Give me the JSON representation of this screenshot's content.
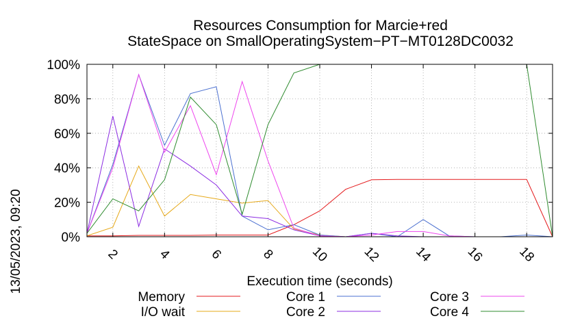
{
  "chart_data": {
    "type": "line",
    "title_lines": [
      "Resources Consumption for Marcie+red",
      "StateSpace on SmallOperatingSystem−PT−MT0128DC0032"
    ],
    "xlabel": "Execution time (seconds)",
    "ylabel": "",
    "side_label": "13/05/2023, 09:20",
    "xlim": [
      1,
      19
    ],
    "ylim": [
      0,
      100
    ],
    "x_ticks": [
      2,
      4,
      6,
      8,
      10,
      12,
      14,
      16,
      18
    ],
    "x_tick_labels": [
      "2",
      "4",
      "6",
      "8",
      "10",
      "12",
      "14",
      "16",
      "18"
    ],
    "y_ticks": [
      0,
      20,
      40,
      60,
      80,
      100
    ],
    "y_tick_labels": [
      "0%",
      "20%",
      "40%",
      "60%",
      "80%",
      "100%"
    ],
    "grid": true,
    "legend_position": "bottom",
    "series": [
      {
        "name": "Memory",
        "color": "#e41a1c",
        "points": [
          [
            1,
            0.5
          ],
          [
            2,
            0.5
          ],
          [
            3,
            0.8
          ],
          [
            4,
            0.8
          ],
          [
            5,
            0.8
          ],
          [
            6,
            1
          ],
          [
            7,
            1
          ],
          [
            8,
            1
          ],
          [
            9,
            7
          ],
          [
            10,
            15
          ],
          [
            11,
            27.5
          ],
          [
            12,
            33
          ],
          [
            13,
            33.2
          ],
          [
            14,
            33.2
          ],
          [
            15,
            33.2
          ],
          [
            16,
            33.2
          ],
          [
            17,
            33.2
          ],
          [
            18,
            33.2
          ],
          [
            19,
            0
          ]
        ]
      },
      {
        "name": "I/O wait",
        "color": "#e6a817",
        "points": [
          [
            1,
            0.5
          ],
          [
            2,
            5.5
          ],
          [
            3,
            41
          ],
          [
            4,
            12
          ],
          [
            5,
            24.5
          ],
          [
            6,
            22
          ],
          [
            7,
            19.5
          ],
          [
            8,
            21
          ],
          [
            9,
            4.5
          ],
          [
            10,
            1
          ],
          [
            11,
            0
          ],
          [
            12,
            0
          ],
          [
            13,
            0
          ],
          [
            14,
            0
          ],
          [
            15,
            0
          ],
          [
            16,
            0
          ],
          [
            17,
            0
          ],
          [
            18,
            0
          ],
          [
            19,
            0
          ]
        ]
      },
      {
        "name": "Core 1",
        "color": "#4a6fd0",
        "points": [
          [
            1,
            2
          ],
          [
            2,
            42
          ],
          [
            3,
            94
          ],
          [
            4,
            53
          ],
          [
            5,
            83
          ],
          [
            6,
            87
          ],
          [
            7,
            12
          ],
          [
            8,
            4
          ],
          [
            9,
            7
          ],
          [
            10,
            1
          ],
          [
            11,
            0
          ],
          [
            12,
            2
          ],
          [
            13,
            0
          ],
          [
            14,
            10
          ],
          [
            15,
            0.5
          ],
          [
            16,
            0
          ],
          [
            17,
            0
          ],
          [
            18,
            1
          ],
          [
            19,
            0
          ]
        ]
      },
      {
        "name": "Core 2",
        "color": "#8b2be2",
        "points": [
          [
            1,
            2
          ],
          [
            2,
            70
          ],
          [
            3,
            6
          ],
          [
            4,
            51
          ],
          [
            5,
            41
          ],
          [
            6,
            30
          ],
          [
            7,
            12
          ],
          [
            8,
            10.5
          ],
          [
            9,
            4
          ],
          [
            10,
            0.5
          ],
          [
            11,
            0
          ],
          [
            12,
            2
          ],
          [
            13,
            0.5
          ],
          [
            14,
            0
          ],
          [
            15,
            0
          ],
          [
            16,
            0
          ],
          [
            17,
            0
          ],
          [
            18,
            0
          ],
          [
            19,
            0
          ]
        ]
      },
      {
        "name": "Core 3",
        "color": "#ee44ee",
        "points": [
          [
            1,
            2
          ],
          [
            2,
            40
          ],
          [
            3,
            94
          ],
          [
            4,
            49
          ],
          [
            5,
            76
          ],
          [
            6,
            36
          ],
          [
            7,
            90
          ],
          [
            8,
            44
          ],
          [
            9,
            5
          ],
          [
            10,
            0.5
          ],
          [
            11,
            0
          ],
          [
            12,
            1
          ],
          [
            13,
            3
          ],
          [
            14,
            3
          ],
          [
            15,
            0.5
          ],
          [
            16,
            0
          ],
          [
            17,
            0
          ],
          [
            18,
            0
          ],
          [
            19,
            0
          ]
        ]
      },
      {
        "name": "Core 4",
        "color": "#2e8b2e",
        "points": [
          [
            1,
            2
          ],
          [
            2,
            22
          ],
          [
            3,
            15
          ],
          [
            4,
            33
          ],
          [
            5,
            81
          ],
          [
            6,
            65
          ],
          [
            7,
            13
          ],
          [
            8,
            65
          ],
          [
            9,
            95
          ],
          [
            10,
            100
          ],
          [
            11,
            100
          ],
          [
            12,
            100
          ],
          [
            13,
            100
          ],
          [
            14,
            100
          ],
          [
            15,
            100
          ],
          [
            16,
            100
          ],
          [
            17,
            100
          ],
          [
            18,
            100
          ],
          [
            19,
            0
          ]
        ]
      }
    ]
  }
}
